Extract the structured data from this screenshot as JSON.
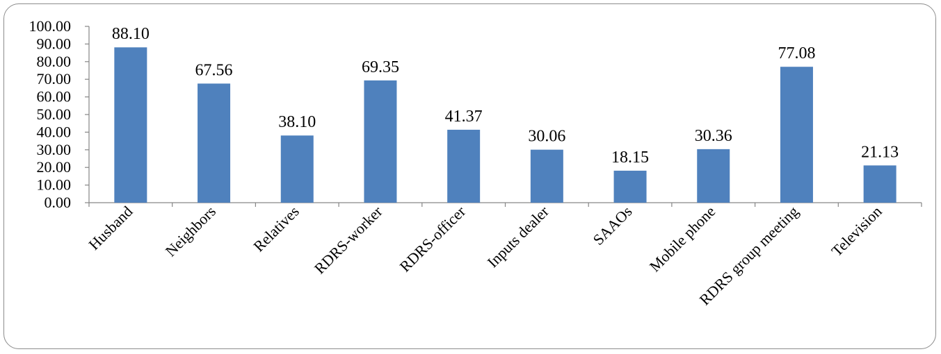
{
  "chart_data": {
    "type": "bar",
    "title": "",
    "xlabel": "",
    "ylabel": "",
    "ylim": [
      0,
      100
    ],
    "yticks": [
      0,
      10,
      20,
      30,
      40,
      50,
      60,
      70,
      80,
      90,
      100
    ],
    "ytick_labels": [
      "0.00",
      "10.00",
      "20.00",
      "30.00",
      "40.00",
      "50.00",
      "60.00",
      "70.00",
      "80.00",
      "90.00",
      "100.00"
    ],
    "categories": [
      "Husband",
      "Neighbors",
      "Relatives",
      "RDRS-worker",
      "RDRS-officer",
      "Inputs dealer",
      "SAAOs",
      "Mobile phone",
      "RDRS group meeting",
      "Television"
    ],
    "values": [
      88.1,
      67.56,
      38.1,
      69.35,
      41.37,
      30.06,
      18.15,
      30.36,
      77.08,
      21.13
    ],
    "value_labels": [
      "88.10",
      "67.56",
      "38.10",
      "69.35",
      "41.37",
      "30.06",
      "18.15",
      "30.36",
      "77.08",
      "21.13"
    ],
    "bar_color": "#4f81bd",
    "grid": false,
    "legend": "none"
  }
}
